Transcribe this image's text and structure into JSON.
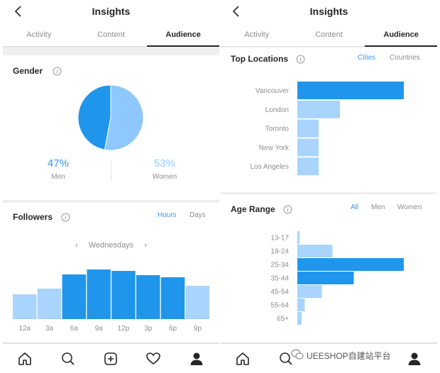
{
  "header": {
    "title": "Insights"
  },
  "tabs": [
    {
      "label": "Activity"
    },
    {
      "label": "Content"
    },
    {
      "label": "Audience"
    }
  ],
  "gender": {
    "title": "Gender",
    "men_pct": "47%",
    "men_label": "Men",
    "women_pct": "53%",
    "women_label": "Women",
    "men_value": 47,
    "women_value": 53
  },
  "followers": {
    "title": "Followers",
    "toggle_hours": "Hours",
    "toggle_days": "Days",
    "day": "Wednesdays"
  },
  "locations": {
    "title": "Top Locations",
    "toggle_cities": "Cities",
    "toggle_countries": "Countries"
  },
  "age": {
    "title": "Age Range",
    "toggle_all": "All",
    "toggle_men": "Men",
    "toggle_women": "Women"
  },
  "colors": {
    "dark": "#1f96ec",
    "light": "#a9d4fb",
    "muted": "#8e8e8e"
  },
  "icons": [
    "back-icon",
    "info-icon",
    "home-icon",
    "search-icon",
    "add-icon",
    "heart-icon",
    "profile-icon"
  ],
  "watermark": "UEESHOP自建站平台",
  "chart_data": [
    {
      "type": "pie",
      "categories": [
        "Men",
        "Women"
      ],
      "values": [
        47,
        53
      ]
    },
    {
      "type": "bar",
      "categories": [
        "12a",
        "3a",
        "6a",
        "9a",
        "12p",
        "3p",
        "6p",
        "9p"
      ],
      "values": [
        35,
        43,
        63,
        70,
        68,
        62,
        59,
        47
      ],
      "ylim": [
        0,
        100
      ],
      "highlight": [
        "6a",
        "9a",
        "12p",
        "3p",
        "6p"
      ]
    },
    {
      "type": "bar",
      "orientation": "horizontal",
      "categories": [
        "Vancouver",
        "London",
        "Toronto",
        "New York",
        "Los Angeles"
      ],
      "values": [
        100,
        40,
        20,
        20,
        20
      ],
      "ylim": [
        0,
        100
      ]
    },
    {
      "type": "bar",
      "orientation": "horizontal",
      "categories": [
        "13-17",
        "18-24",
        "25-34",
        "35-44",
        "45-54",
        "55-64",
        "65+"
      ],
      "values": [
        2,
        33,
        100,
        53,
        23,
        7,
        4
      ],
      "ylim": [
        0,
        100
      ]
    }
  ]
}
